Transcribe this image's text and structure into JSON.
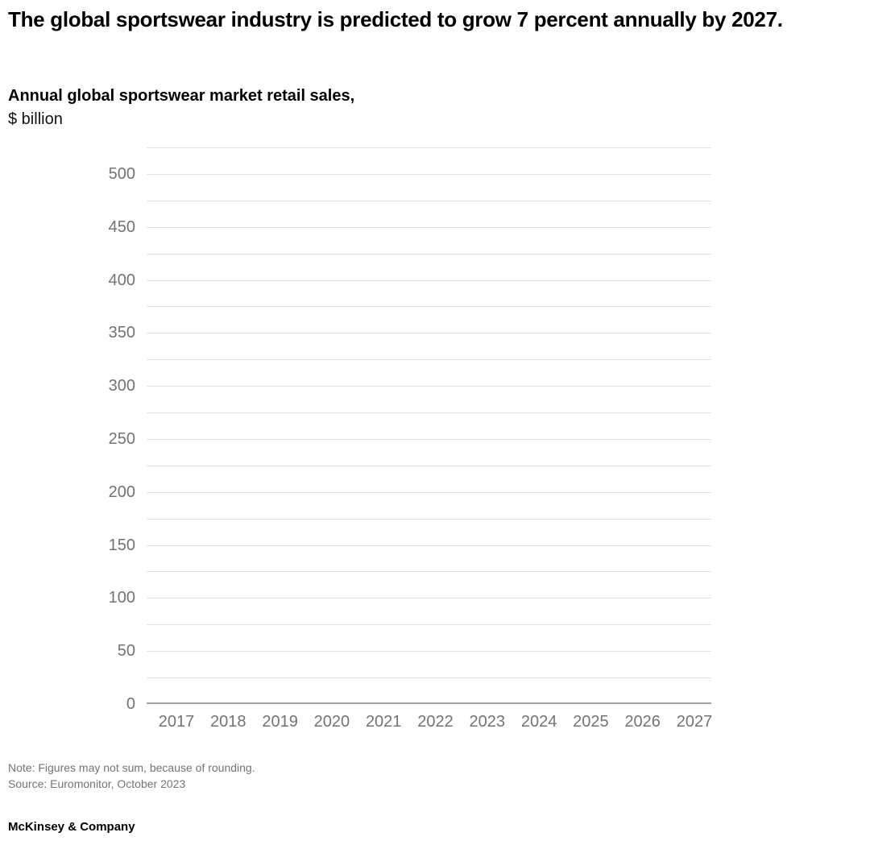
{
  "header": {
    "title": "The global sportswear industry is predicted to grow 7 percent annually by 2027.",
    "chart_title": "Annual global sportswear market retail sales,",
    "chart_unit": "$ billion"
  },
  "chart_data": {
    "type": "bar",
    "title": "Annual global sportswear market retail sales,",
    "unit": "$ billion",
    "categories": [
      "2017",
      "2018",
      "2019",
      "2020",
      "2021",
      "2022",
      "2023",
      "2024",
      "2025",
      "2026",
      "2027"
    ],
    "values": [],
    "series_rendered": false,
    "xlabel": "",
    "ylabel": "$ billion",
    "ylim": [
      0,
      525
    ],
    "y_tick_interval": 50,
    "y_gridline_interval": 25,
    "y_tick_labels": [
      "0",
      "50",
      "100",
      "150",
      "200",
      "250",
      "300",
      "350",
      "400",
      "450",
      "500"
    ],
    "grid": true,
    "legend": false,
    "colors": {
      "gridline": "#e2e2e2",
      "axis_line": "#a3a3a3",
      "tick_label": "#737373"
    }
  },
  "footer": {
    "note": "Note: Figures may not sum, because of rounding.",
    "source": "Source: Euromonitor, October 2023",
    "brand": "McKinsey & Company"
  },
  "colors": {
    "background": "#ffffff",
    "title_text": "#000000",
    "heading_text": "#000000",
    "footnote_text": "#737373"
  }
}
